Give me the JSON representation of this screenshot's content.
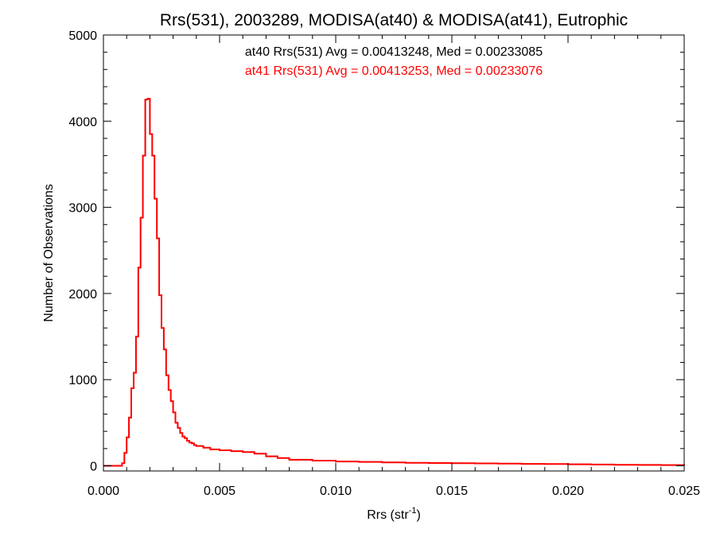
{
  "chart_data": {
    "type": "line",
    "style": "step-histogram",
    "title": "Rrs(531), 2003289, MODISA(at40) & MODISA(at41), Eutrophic",
    "xlabel": "Rrs (str",
    "xlabel_sup": "-1",
    "xlabel_end": ")",
    "ylabel": "Number of Observations",
    "xlim": [
      0.0,
      0.025
    ],
    "ylim": [
      -60,
      5000
    ],
    "x_ticks": [
      0.0,
      0.005,
      0.01,
      0.015,
      0.02,
      0.025
    ],
    "x_tick_labels": [
      "0.000",
      "0.005",
      "0.010",
      "0.015",
      "0.020",
      "0.025"
    ],
    "y_ticks": [
      0,
      1000,
      2000,
      3000,
      4000,
      5000
    ],
    "y_tick_labels": [
      "0",
      "1000",
      "2000",
      "3000",
      "4000",
      "5000"
    ],
    "grid": false,
    "legend_position": "top-center",
    "annotations": [
      {
        "text": "at40 Rrs(531) Avg = 0.00413248, Med = 0.00233085",
        "color": "#000000"
      },
      {
        "text": "at41 Rrs(531) Avg = 0.00413253, Med = 0.00233076",
        "color": "#ff0000"
      }
    ],
    "series": [
      {
        "color": "#000000",
        "x": [
          0.0,
          0.0006,
          0.0008,
          0.0009,
          0.001,
          0.0011,
          0.0012,
          0.0013,
          0.0014,
          0.0015,
          0.0016,
          0.0017,
          0.0018,
          0.0019,
          0.002,
          0.0021,
          0.0022,
          0.0023,
          0.0024,
          0.0025,
          0.0026,
          0.0027,
          0.0028,
          0.0029,
          0.003,
          0.0031,
          0.0032,
          0.0033,
          0.0034,
          0.0035,
          0.0036,
          0.0037,
          0.0038,
          0.0039,
          0.004,
          0.0043,
          0.0046,
          0.005,
          0.0055,
          0.006,
          0.0065,
          0.007,
          0.0075,
          0.008,
          0.009,
          0.01,
          0.011,
          0.012,
          0.013,
          0.014,
          0.015,
          0.016,
          0.017,
          0.018,
          0.019,
          0.02,
          0.021,
          0.022,
          0.023,
          0.024,
          0.025
        ],
        "values": [
          0,
          0,
          30,
          150,
          330,
          560,
          900,
          1080,
          1500,
          2300,
          2880,
          3600,
          4250,
          4260,
          3850,
          3600,
          3100,
          2640,
          1980,
          1600,
          1350,
          1050,
          880,
          750,
          620,
          500,
          440,
          380,
          340,
          320,
          290,
          270,
          260,
          240,
          230,
          210,
          190,
          180,
          170,
          160,
          140,
          110,
          90,
          70,
          60,
          50,
          45,
          40,
          35,
          32,
          30,
          28,
          25,
          22,
          20,
          18,
          15,
          12,
          10,
          8,
          5
        ]
      },
      {
        "color": "#ff0000",
        "x": [
          0.0,
          0.0006,
          0.0008,
          0.0009,
          0.001,
          0.0011,
          0.0012,
          0.0013,
          0.0014,
          0.0015,
          0.0016,
          0.0017,
          0.0018,
          0.0019,
          0.002,
          0.0021,
          0.0022,
          0.0023,
          0.0024,
          0.0025,
          0.0026,
          0.0027,
          0.0028,
          0.0029,
          0.003,
          0.0031,
          0.0032,
          0.0033,
          0.0034,
          0.0035,
          0.0036,
          0.0037,
          0.0038,
          0.0039,
          0.004,
          0.0043,
          0.0046,
          0.005,
          0.0055,
          0.006,
          0.0065,
          0.007,
          0.0075,
          0.008,
          0.009,
          0.01,
          0.011,
          0.012,
          0.013,
          0.014,
          0.015,
          0.016,
          0.017,
          0.018,
          0.019,
          0.02,
          0.021,
          0.022,
          0.023,
          0.024,
          0.025
        ],
        "values": [
          0,
          0,
          30,
          150,
          330,
          560,
          900,
          1080,
          1500,
          2300,
          2880,
          3600,
          4250,
          4260,
          3850,
          3600,
          3100,
          2640,
          1980,
          1600,
          1350,
          1050,
          880,
          750,
          620,
          500,
          440,
          380,
          340,
          320,
          290,
          270,
          260,
          240,
          230,
          210,
          190,
          180,
          170,
          160,
          140,
          110,
          90,
          70,
          60,
          50,
          45,
          40,
          35,
          32,
          30,
          28,
          25,
          22,
          20,
          18,
          15,
          12,
          10,
          8,
          5
        ]
      }
    ]
  }
}
